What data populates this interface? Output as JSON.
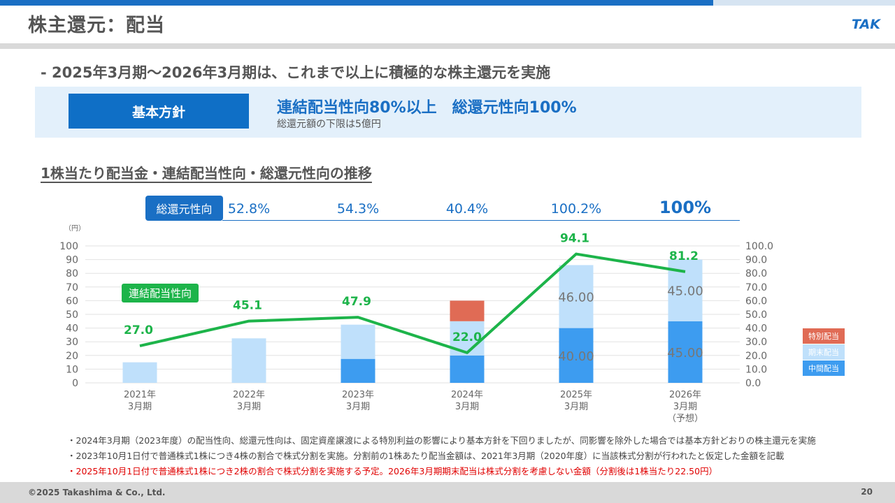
{
  "header": {
    "title": "株主還元：配当",
    "logo_text": "TAK"
  },
  "subheading": "- 2025年3月期～2026年3月期は、これまで以上に積極的な株主還元を実施",
  "policy": {
    "label": "基本方針",
    "main": "連結配当性向80%以上　総還元性向100%",
    "sub": "総還元額の下限は5億円"
  },
  "section_title": "1株当たり配当金・連結配当性向・総還元性向の推移",
  "total_return": {
    "label": "総還元性向",
    "values": [
      "52.8%",
      "54.3%",
      "40.4%",
      "100.2%",
      "100%"
    ]
  },
  "chart_data": {
    "type": "bar",
    "unit_label": "（円）",
    "categories": [
      [
        "2021年",
        "3月期"
      ],
      [
        "2022年",
        "3月期"
      ],
      [
        "2023年",
        "3月期"
      ],
      [
        "2024年",
        "3月期"
      ],
      [
        "2025年",
        "3月期"
      ],
      [
        "2026年",
        "3月期",
        "（予想）"
      ]
    ],
    "ylim": [
      0,
      100
    ],
    "yticks": [
      "0",
      "10",
      "20",
      "30",
      "40",
      "50",
      "60",
      "70",
      "80",
      "90",
      "100"
    ],
    "y2ticks": [
      "0.0",
      "10.0",
      "20.0",
      "30.0",
      "40.0",
      "50.0",
      "60.0",
      "70.0",
      "80.0",
      "90.0",
      "100.0"
    ],
    "series": [
      {
        "name": "中間配当",
        "color": "#3d9cf0",
        "values": [
          0,
          0,
          17.5,
          20,
          40,
          45
        ]
      },
      {
        "name": "期末配当",
        "color": "#bfe0fb",
        "values": [
          15,
          32.5,
          25,
          25,
          46,
          45
        ]
      },
      {
        "name": "特別配当",
        "color": "#e06b55",
        "values": [
          0,
          0,
          0,
          15,
          0,
          0
        ]
      }
    ],
    "bar_labels": [
      {
        "index": 4,
        "series": 0,
        "text": "40.00"
      },
      {
        "index": 4,
        "series": 1,
        "text": "46.00"
      },
      {
        "index": 5,
        "series": 0,
        "text": "45.00"
      },
      {
        "index": 5,
        "series": 1,
        "text": "45.00"
      }
    ],
    "line": {
      "name": "連結配当性向",
      "color": "#1db44a",
      "values": [
        27.0,
        45.1,
        47.9,
        22.0,
        94.1,
        81.2
      ],
      "labels": [
        "27.0",
        "45.1",
        "47.9",
        "22.0",
        "94.1",
        "81.2"
      ]
    },
    "legend": {
      "position": "right",
      "order": [
        "特別配当",
        "期末配当",
        "中間配当"
      ]
    }
  },
  "notes": [
    "・2024年3月期（2023年度）の配当性向、総還元性向は、固定資産譲渡による特別利益の影響により基本方針を下回りましたが、同影響を除外した場合では基本方針どおりの株主還元を実施",
    "・2023年10月1日付で普通株式1株につき4株の割合で株式分割を実施。分割前の1株あたり配当金額は、2021年3月期（2020年度）に当該株式分割が行われたと仮定した金額を記載",
    "・2025年10月1日付で普通株式1株につき2株の割合で株式分割を実施する予定。2026年3月期期末配当は株式分割を考慮しない金額（分割後は1株当たり22.50円）"
  ],
  "footer": {
    "copyright": "©2025 Takashima & Co., Ltd.",
    "page": "20"
  }
}
